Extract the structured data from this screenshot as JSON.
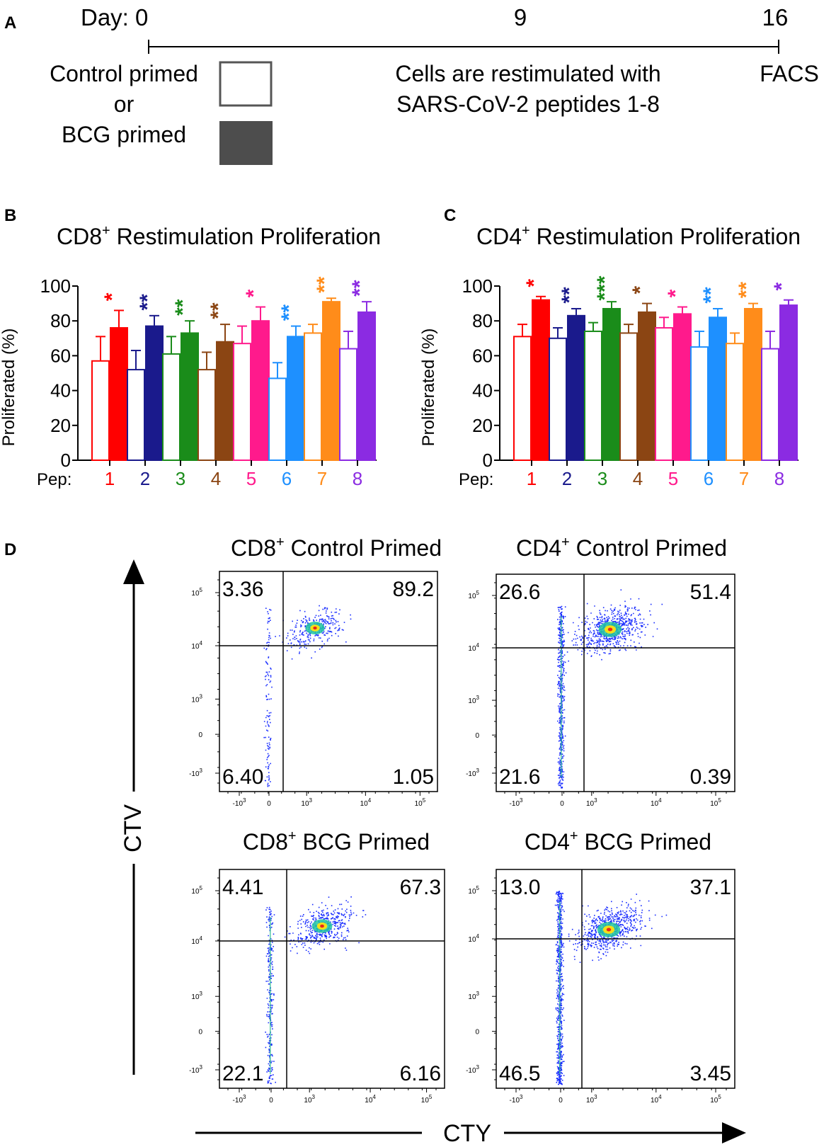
{
  "panel_labels": {
    "a": "A",
    "b": "B",
    "c": "C",
    "d": "D"
  },
  "timeline": {
    "day_label": "Day: 0",
    "day_9": "9",
    "day_16": "16",
    "control_primed": "Control primed",
    "or": "or",
    "bcg_primed": "BCG primed",
    "restim_line1": "Cells are restimulated with",
    "restim_line2": "SARS-CoV-2 peptides 1-8",
    "facs": "FACS",
    "control_color": "#ffffff",
    "bcg_color": "#4d4d4d"
  },
  "peptide_colors": [
    "#ff0000",
    "#1a1a8c",
    "#1a8c1a",
    "#8b4513",
    "#ff1a8c",
    "#1e90ff",
    "#ff8c1a",
    "#8b2be2"
  ],
  "chart_data": [
    {
      "type": "bar",
      "title": "CD8",
      "title_sup": "+",
      "title_rest": " Restimulation Proliferation",
      "ylabel": "Proliferated  (%)",
      "xlabel": "Pep:",
      "ylim": [
        0,
        100
      ],
      "yticks": [
        "0",
        "20",
        "40",
        "60",
        "80",
        "100"
      ],
      "categories": [
        "1",
        "2",
        "3",
        "4",
        "5",
        "6",
        "7",
        "8"
      ],
      "series": [
        {
          "name": "Control primed",
          "fill": "open",
          "values": [
            57,
            52,
            61,
            52,
            67,
            47,
            73,
            64
          ],
          "errors": [
            14,
            11,
            10,
            10,
            10,
            9,
            5,
            10
          ]
        },
        {
          "name": "BCG primed",
          "fill": "solid",
          "values": [
            76,
            77,
            73,
            68,
            80,
            71,
            91,
            85
          ],
          "errors": [
            10,
            6,
            7,
            10,
            8,
            6,
            2,
            6
          ]
        }
      ],
      "significance": [
        "*",
        "**",
        "**",
        "**",
        "*",
        "**",
        "**",
        "**"
      ]
    },
    {
      "type": "bar",
      "title": "CD4",
      "title_sup": "+",
      "title_rest": " Restimulation Proliferation",
      "ylabel": "Proliferated  (%)",
      "xlabel": "Pep:",
      "ylim": [
        0,
        100
      ],
      "yticks": [
        "0",
        "20",
        "40",
        "60",
        "80",
        "100"
      ],
      "categories": [
        "1",
        "2",
        "3",
        "4",
        "5",
        "6",
        "7",
        "8"
      ],
      "series": [
        {
          "name": "Control primed",
          "fill": "open",
          "values": [
            71,
            70,
            74,
            73,
            76,
            65,
            67,
            64
          ],
          "errors": [
            7,
            6,
            5,
            5,
            6,
            9,
            6,
            10
          ]
        },
        {
          "name": "BCG primed",
          "fill": "solid",
          "values": [
            92,
            83,
            87,
            85,
            84,
            82,
            87,
            89
          ],
          "errors": [
            2,
            4,
            4,
            5,
            4,
            5,
            3,
            3
          ]
        }
      ],
      "significance": [
        "*",
        "**",
        "***",
        "*",
        "*",
        "**",
        "**",
        "*"
      ]
    },
    {
      "type": "scatter",
      "plots": [
        {
          "name": "CD8",
          "sup": "+",
          "rest": " Control Primed",
          "quadrants": [
            "3.36",
            "89.2",
            "6.40",
            "1.05"
          ]
        },
        {
          "name": "CD4",
          "sup": "+",
          "rest": " Control Primed",
          "quadrants": [
            "26.6",
            "51.4",
            "21.6",
            "0.39"
          ]
        },
        {
          "name": "CD8",
          "sup": "+",
          "rest": " BCG Primed",
          "quadrants": [
            "4.41",
            "67.3",
            "22.1",
            "6.16"
          ]
        },
        {
          "name": "CD4",
          "sup": "+",
          "rest": " BCG Primed",
          "quadrants": [
            "13.0",
            "37.1",
            "46.5",
            "3.45"
          ]
        }
      ],
      "y_ticks": [
        "10",
        "10",
        "10",
        "0",
        "-10"
      ],
      "y_tick_exps": [
        "5",
        "4",
        "3",
        "",
        "3"
      ],
      "x_ticks": [
        "-10",
        "0",
        "10",
        "10",
        "10"
      ],
      "x_tick_exps": [
        "3",
        "",
        "3",
        "4",
        "5"
      ],
      "ylabel": "CTV",
      "xlabel": "CTY"
    }
  ]
}
